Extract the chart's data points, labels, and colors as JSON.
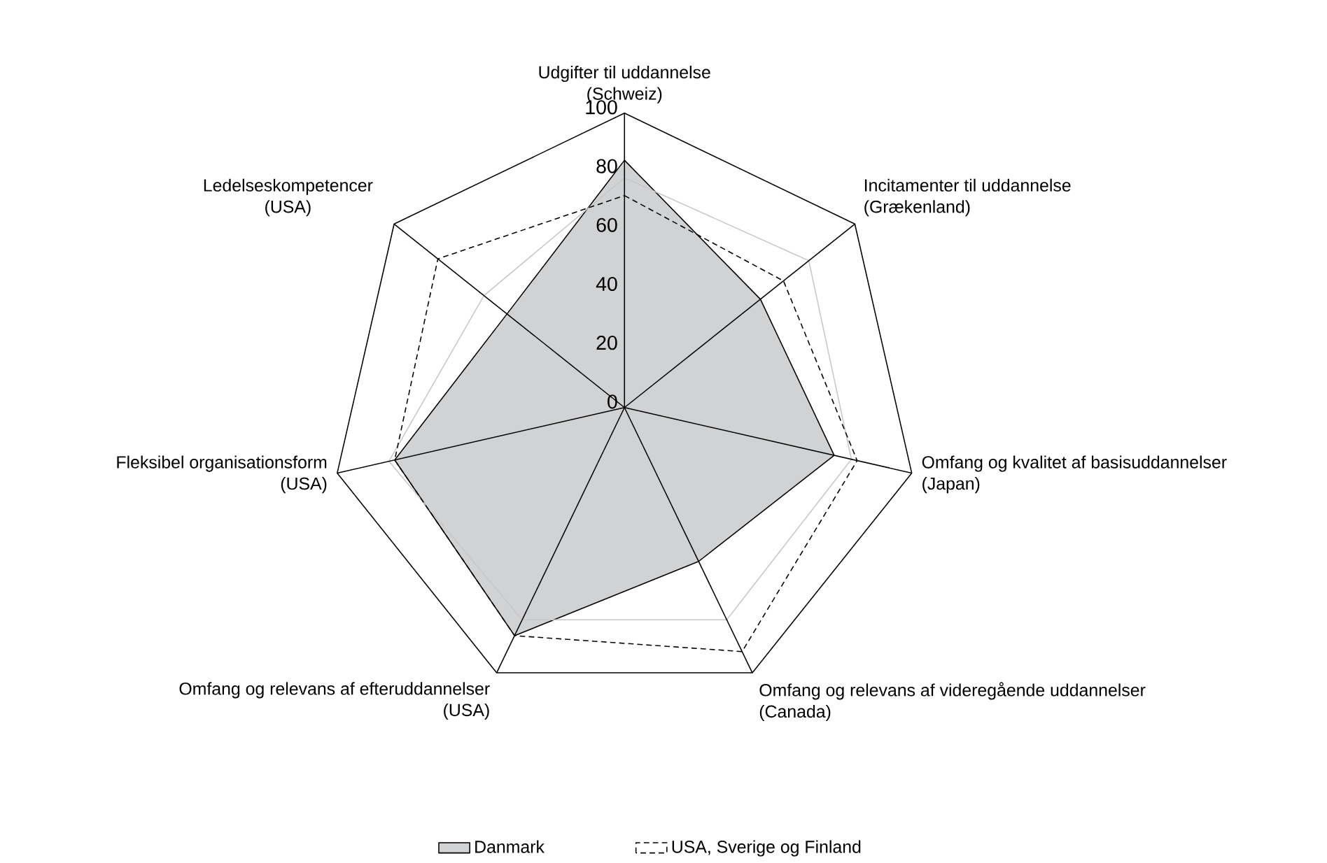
{
  "chart_data": {
    "type": "radar",
    "categories": [
      "Udgifter til uddannelse (Schweiz)",
      "Incitamenter til uddannelse (Grækenland)",
      "Omfang og kvalitet af basisuddannelser (Japan)",
      "Omfang og relevans af videregående uddannelser (Canada)",
      "Omfang og relevans af efteruddannelser (USA)",
      "Fleksibel organisationsform (USA)",
      "Ledelseskompetencer (USA)"
    ],
    "series": [
      {
        "name": "Danmark",
        "color": "#d1d2d4",
        "values": [
          84,
          59,
          73,
          58,
          86,
          80,
          51
        ]
      },
      {
        "color": "#c8c8c8",
        "values": [
          78,
          80,
          79,
          80,
          80,
          82,
          61
        ]
      },
      {
        "name": "USA, Sverige og Finland",
        "line_style": "dashed",
        "color": "#000000",
        "values": [
          72,
          69,
          81,
          92,
          86,
          80,
          81
        ]
      }
    ],
    "ylim": [
      0,
      100
    ],
    "yticks": [
      0,
      20,
      40,
      60,
      80,
      100
    ],
    "grid": false,
    "legend": "bottom"
  }
}
